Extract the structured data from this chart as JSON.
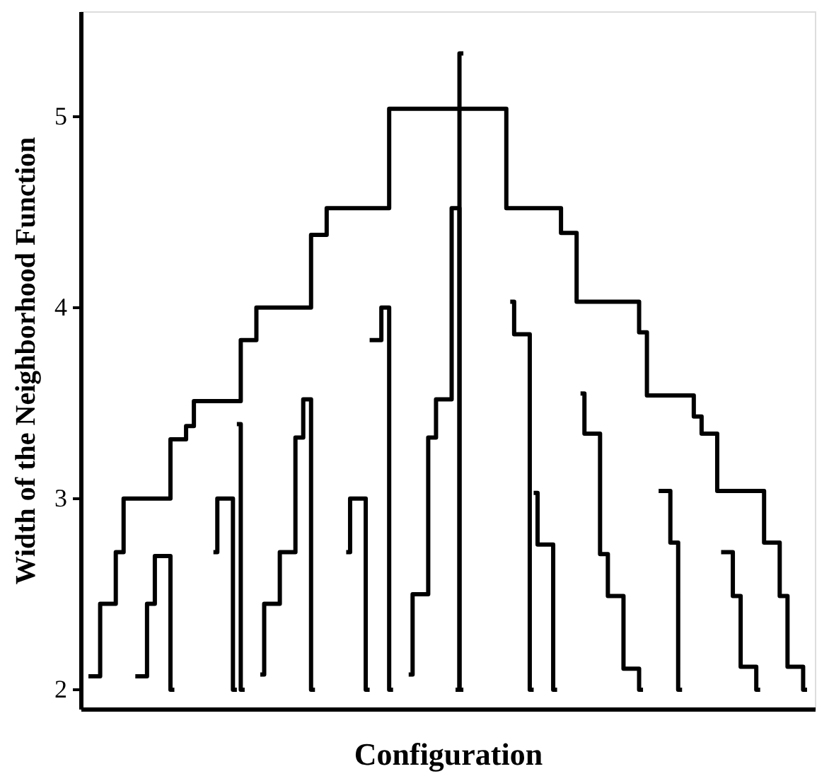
{
  "chart_data": {
    "type": "step",
    "xlabel": "Configuration",
    "ylabel": "Width of the Neighborhood Function",
    "ylim": [
      1.9,
      5.55
    ],
    "yticks": [
      2,
      3,
      4,
      5
    ],
    "grid": false,
    "categories": [
      null,
      null,
      null,
      null,
      null,
      null,
      null,
      null,
      null,
      null,
      null,
      null,
      null,
      null,
      null,
      null,
      null,
      null,
      null,
      null,
      null,
      null,
      null,
      null,
      null,
      null,
      null,
      null,
      null,
      null,
      null,
      null,
      null,
      null,
      null,
      null,
      null,
      null,
      null,
      null,
      null,
      null,
      null,
      null,
      null,
      null,
      null,
      null,
      null,
      null,
      null,
      null,
      null,
      null,
      null,
      null,
      null,
      null,
      null,
      null,
      null,
      null,
      null,
      null,
      null,
      null,
      null,
      null,
      null,
      null,
      null,
      null,
      null,
      null,
      null,
      null,
      null,
      null,
      null,
      null,
      null,
      null,
      null,
      null,
      null,
      null,
      null,
      null,
      null,
      null,
      null,
      null,
      null
    ],
    "series": [
      {
        "color": "#000000",
        "values": [
          2.07,
          2.07,
          2.45,
          2.45,
          2.72,
          3.0,
          3.0,
          3.0,
          3.0,
          3.0,
          3.0,
          3.31,
          3.31,
          3.38,
          3.51,
          3.51,
          3.51,
          3.51,
          3.51,
          3.51,
          3.83,
          3.83,
          4.0,
          4.0,
          4.0,
          4.0,
          4.0,
          4.0,
          4.0,
          4.38,
          4.38,
          4.52,
          4.52,
          4.52,
          4.52,
          4.52,
          4.52,
          4.52,
          4.52,
          5.04,
          5.04,
          5.04,
          5.04,
          5.04,
          5.04,
          5.04,
          5.04,
          5.04,
          5.04,
          5.04,
          5.04,
          5.04,
          5.04,
          5.04,
          4.52,
          4.52,
          4.52,
          4.52,
          4.52,
          4.52,
          4.52,
          4.39,
          4.39,
          4.03,
          4.03,
          4.03,
          4.03,
          4.03,
          4.03,
          4.03,
          4.03,
          3.87,
          3.54,
          3.54,
          3.54,
          3.54,
          3.54,
          3.54,
          3.43,
          3.34,
          3.34,
          3.04,
          3.04,
          3.04,
          3.04,
          3.04,
          3.04,
          2.77,
          2.77,
          2.49,
          2.12,
          2.12,
          2.0
        ]
      },
      {
        "color": "#000000",
        "values": [
          null,
          null,
          null,
          null,
          null,
          null,
          2.07,
          2.07,
          2.45,
          2.7,
          2.7,
          2.0,
          null,
          null,
          null,
          null,
          2.72,
          3.0,
          3.0,
          2.0,
          null,
          null,
          2.08,
          2.45,
          2.45,
          2.72,
          2.72,
          3.32,
          3.52,
          2.0,
          null,
          null,
          null,
          2.72,
          3.0,
          3.0,
          2.0,
          null,
          null,
          null,
          null,
          2.08,
          2.5,
          2.5,
          3.32,
          3.52,
          3.52,
          4.52,
          2.0,
          null,
          null,
          null,
          null,
          null,
          4.03,
          3.86,
          3.86,
          2.0,
          null,
          null,
          null,
          null,
          null,
          3.55,
          3.34,
          3.34,
          2.71,
          2.49,
          2.49,
          2.11,
          2.11,
          2.0,
          null,
          3.04,
          3.04,
          2.77,
          2.0,
          null,
          null,
          null,
          null,
          2.72,
          2.72,
          2.49,
          2.12,
          2.12,
          2.0,
          null,
          null,
          null,
          null,
          null,
          null
        ]
      },
      {
        "color": "#000000",
        "values": [
          null,
          null,
          null,
          null,
          null,
          null,
          null,
          null,
          null,
          null,
          null,
          null,
          null,
          null,
          null,
          null,
          null,
          null,
          null,
          3.39,
          2.0,
          null,
          null,
          null,
          null,
          null,
          null,
          null,
          null,
          null,
          null,
          null,
          null,
          null,
          null,
          null,
          3.83,
          3.83,
          4.0,
          2.0,
          null,
          null,
          null,
          null,
          null,
          null,
          null,
          2.0,
          5.33,
          null,
          null,
          null,
          null,
          null,
          null,
          null,
          null,
          3.03,
          2.76,
          2.76,
          2.0,
          null,
          null,
          null,
          null,
          null,
          null,
          null,
          null,
          null,
          null,
          null,
          null,
          null,
          null,
          null,
          null,
          null,
          null,
          null,
          null,
          null,
          null,
          null,
          null,
          null,
          null,
          null,
          null,
          null,
          null,
          null,
          null
        ]
      }
    ]
  }
}
